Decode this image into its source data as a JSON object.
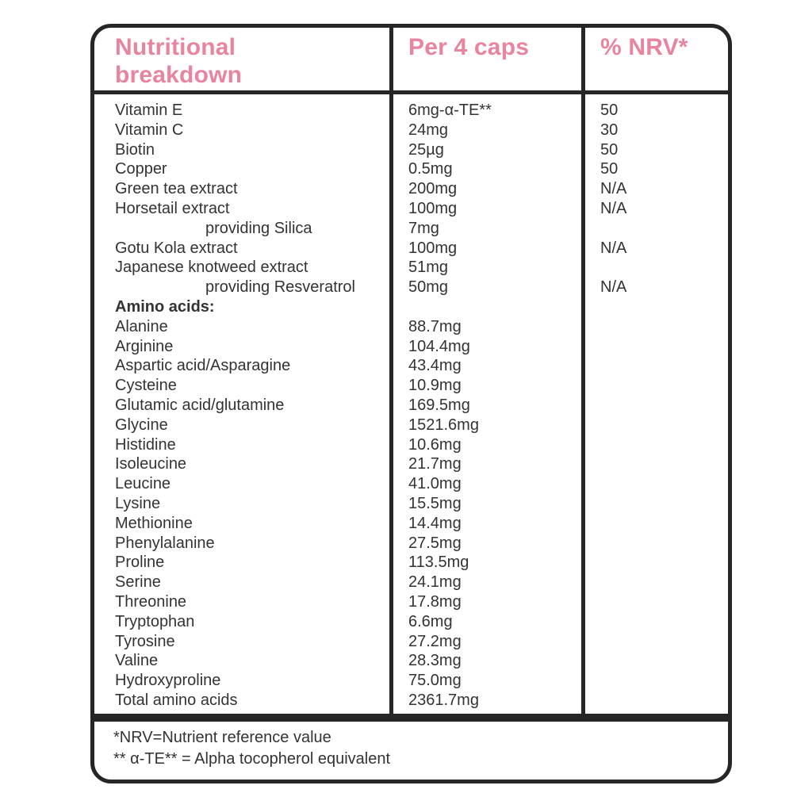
{
  "colors": {
    "accent_pink": "#e8849e",
    "border": "#262626",
    "text": "#333333"
  },
  "table": {
    "header": {
      "nutrient_col": "Nutritional breakdown",
      "amount_col": "Per 4 caps",
      "nrv_col": "% NRV*"
    },
    "rows": [
      {
        "name": "Vitamin E",
        "amount": "6mg-α-TE**",
        "nrv": "50"
      },
      {
        "name": "Vitamin C",
        "amount": "24mg",
        "nrv": "30"
      },
      {
        "name": "Biotin",
        "amount": "25µg",
        "nrv": "50"
      },
      {
        "name": "Copper",
        "amount": "0.5mg",
        "nrv": "50"
      },
      {
        "name": "Green tea extract",
        "amount": "200mg",
        "nrv": "N/A"
      },
      {
        "name": "Horsetail extract",
        "amount": "100mg",
        "nrv": "N/A"
      },
      {
        "name": "providing Silica",
        "amount": "7mg",
        "nrv": "",
        "indent": true
      },
      {
        "name": "Gotu Kola extract",
        "amount": "100mg",
        "nrv": "N/A"
      },
      {
        "name": "Japanese knotweed extract",
        "amount": "51mg",
        "nrv": ""
      },
      {
        "name": "providing Resveratrol",
        "amount": "50mg",
        "nrv": "N/A",
        "indent": true
      },
      {
        "name": "Amino acids:",
        "amount": "",
        "nrv": "",
        "bold": true
      },
      {
        "name": "Alanine",
        "amount": "88.7mg",
        "nrv": ""
      },
      {
        "name": "Arginine",
        "amount": "104.4mg",
        "nrv": ""
      },
      {
        "name": "Aspartic acid/Asparagine",
        "amount": "43.4mg",
        "nrv": ""
      },
      {
        "name": "Cysteine",
        "amount": "10.9mg",
        "nrv": ""
      },
      {
        "name": "Glutamic acid/glutamine",
        "amount": "169.5mg",
        "nrv": ""
      },
      {
        "name": "Glycine",
        "amount": "1521.6mg",
        "nrv": ""
      },
      {
        "name": "Histidine",
        "amount": "10.6mg",
        "nrv": ""
      },
      {
        "name": "Isoleucine",
        "amount": "21.7mg",
        "nrv": ""
      },
      {
        "name": "Leucine",
        "amount": "41.0mg",
        "nrv": ""
      },
      {
        "name": "Lysine",
        "amount": "15.5mg",
        "nrv": ""
      },
      {
        "name": "Methionine",
        "amount": "14.4mg",
        "nrv": ""
      },
      {
        "name": "Phenylalanine",
        "amount": "27.5mg",
        "nrv": ""
      },
      {
        "name": "Proline",
        "amount": "113.5mg",
        "nrv": ""
      },
      {
        "name": "Serine",
        "amount": "24.1mg",
        "nrv": ""
      },
      {
        "name": "Threonine",
        "amount": "17.8mg",
        "nrv": ""
      },
      {
        "name": "Tryptophan",
        "amount": "6.6mg",
        "nrv": ""
      },
      {
        "name": "Tyrosine",
        "amount": "27.2mg",
        "nrv": ""
      },
      {
        "name": "Valine",
        "amount": "28.3mg",
        "nrv": ""
      },
      {
        "name": "Hydroxyproline",
        "amount": "75.0mg",
        "nrv": ""
      },
      {
        "name": "Total amino acids",
        "amount": "2361.7mg",
        "nrv": ""
      }
    ],
    "footnotes": [
      "*NRV=Nutrient reference value",
      "** α-TE** = Alpha tocopherol equivalent"
    ]
  }
}
